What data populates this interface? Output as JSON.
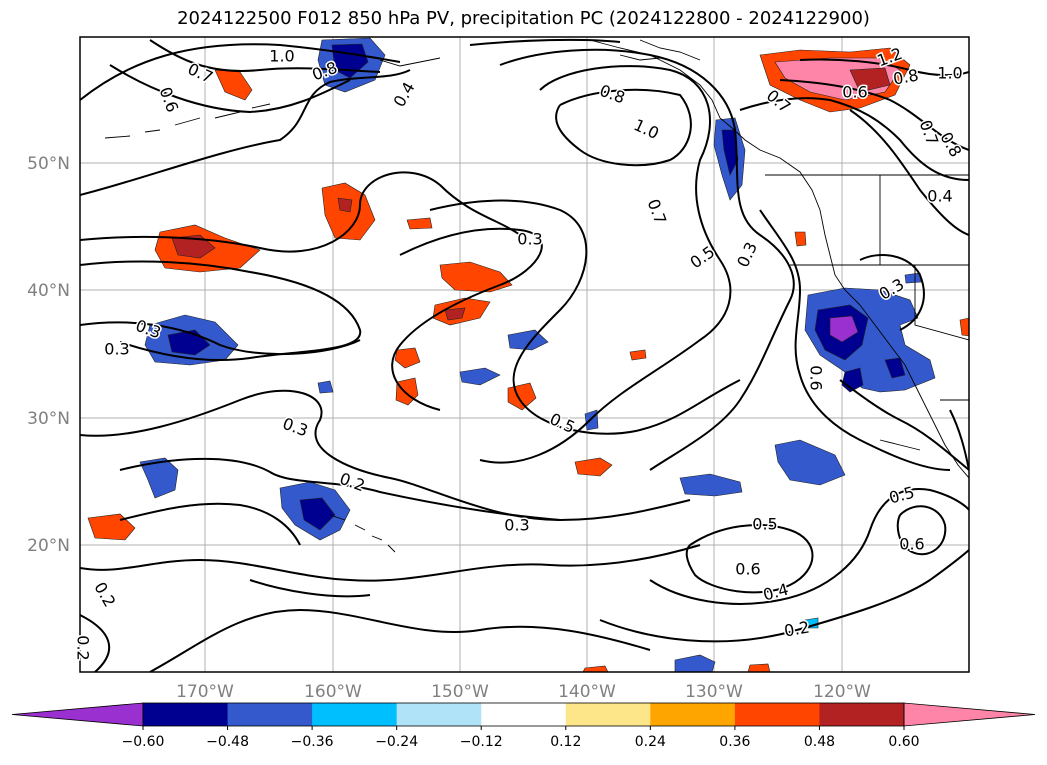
{
  "title": "2024122500 F012 850 hPa PV, precipitation PC (2024122800 - 2024122900)",
  "map": {
    "lat_labels": [
      "50°N",
      "40°N",
      "30°N",
      "20°N"
    ],
    "lon_labels": [
      "170°W",
      "160°W",
      "150°W",
      "140°W",
      "130°W",
      "120°W"
    ],
    "contour_labels": [
      "1.0",
      "0.8",
      "0.7",
      "0.6",
      "0.4",
      "0.8",
      "1.0",
      "0.7",
      "0.5",
      "0.3",
      "0.3",
      "0.3",
      "0.3",
      "0.5",
      "0.2",
      "0.3",
      "0.5",
      "0.6",
      "0.4",
      "0.2",
      "0.2",
      "0.2",
      "1.2",
      "0.8",
      "1.0",
      "0.6",
      "0.7",
      "0.7",
      "0.8",
      "0.4",
      "0.3",
      "0.6",
      "0.5",
      "0.6",
      "0.3"
    ]
  },
  "colorbar": {
    "ticks": [
      "−0.60",
      "−0.48",
      "−0.36",
      "−0.24",
      "−0.12",
      "0.12",
      "0.24",
      "0.36",
      "0.48",
      "0.60"
    ],
    "colors": [
      "#9b30d0",
      "#000090",
      "#3359cc",
      "#00bfff",
      "#b0e2f8",
      "#ffffff",
      "#fde68a",
      "#ffa500",
      "#ff4500",
      "#b22222",
      "#ff85a8"
    ]
  }
}
